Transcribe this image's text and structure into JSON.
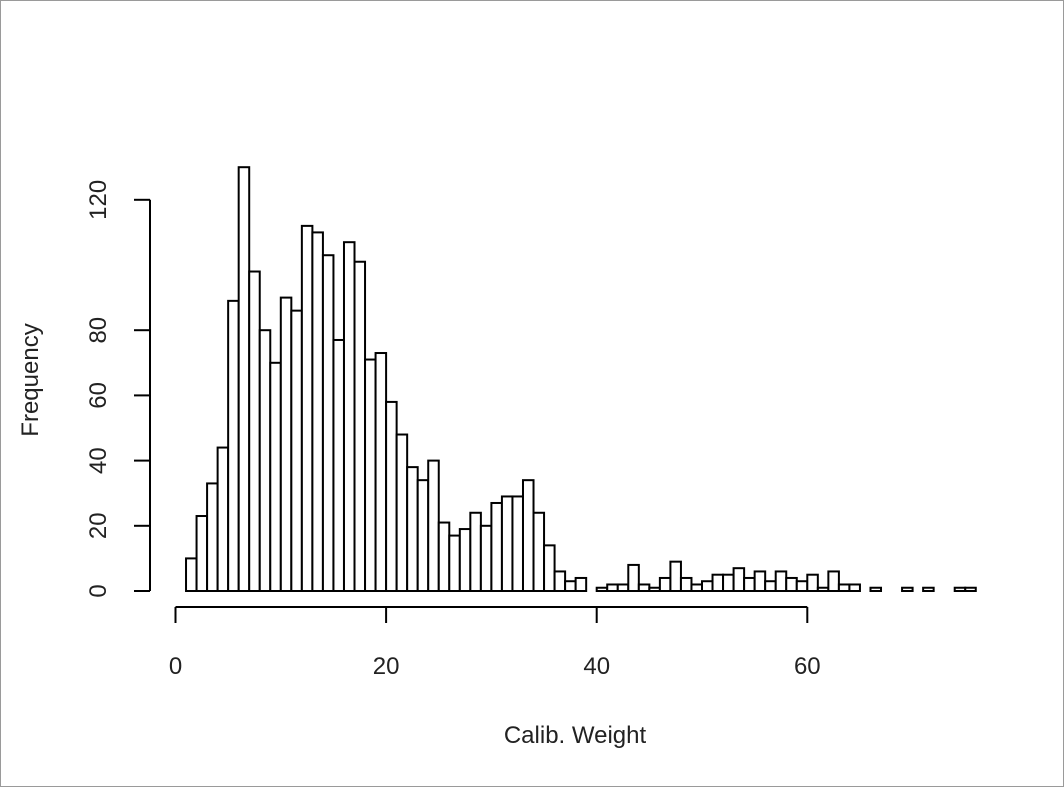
{
  "chart_data": {
    "type": "bar",
    "title": "",
    "xlabel": "Calib. Weight",
    "ylabel": "Frequency",
    "bin_width": 1,
    "bin_starts": [
      1,
      2,
      3,
      4,
      5,
      6,
      7,
      8,
      9,
      10,
      11,
      12,
      13,
      14,
      15,
      16,
      17,
      18,
      19,
      20,
      21,
      22,
      23,
      24,
      25,
      26,
      27,
      28,
      29,
      30,
      31,
      32,
      33,
      34,
      35,
      36,
      37,
      38,
      39,
      40,
      41,
      42,
      43,
      44,
      45,
      46,
      47,
      48,
      49,
      50,
      51,
      52,
      53,
      54,
      55,
      56,
      57,
      58,
      59,
      60,
      61,
      62,
      63,
      64,
      65,
      66,
      67,
      68,
      69,
      70,
      71,
      72,
      73,
      74,
      75
    ],
    "values": [
      10,
      23,
      33,
      44,
      89,
      130,
      98,
      80,
      70,
      90,
      86,
      112,
      110,
      103,
      77,
      107,
      101,
      71,
      73,
      58,
      48,
      38,
      34,
      40,
      21,
      17,
      19,
      24,
      20,
      27,
      29,
      29,
      34,
      24,
      14,
      6,
      3,
      4,
      0,
      1,
      2,
      2,
      8,
      2,
      1,
      4,
      9,
      4,
      2,
      3,
      5,
      5,
      7,
      4,
      6,
      3,
      6,
      4,
      3,
      5,
      1,
      6,
      2,
      2,
      0,
      1,
      0,
      0,
      1,
      0,
      1,
      0,
      0,
      1,
      1
    ],
    "xlim": [
      0,
      75
    ],
    "ylim": [
      0,
      130
    ],
    "x_ticks": [
      0,
      20,
      40,
      60
    ],
    "y_ticks": [
      0,
      20,
      40,
      60,
      80,
      120
    ],
    "x_tick_labels": [
      "0",
      "20",
      "40",
      "60"
    ],
    "y_tick_labels": [
      "0",
      "20",
      "40",
      "60",
      "80",
      "120"
    ],
    "grid": false,
    "legend": "none",
    "bar_fill": "#ffffff",
    "bar_stroke": "#000000"
  }
}
